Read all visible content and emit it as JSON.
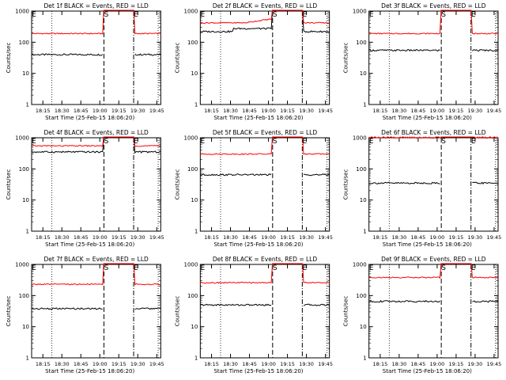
{
  "figure": {
    "ylabel": "Counts/sec",
    "xlabel": "Start Time (25-Feb-15 18:06:20)",
    "legend_colors": {
      "events": "#000000",
      "lld": "#ff0000"
    }
  },
  "chart_data": [
    {
      "type": "line",
      "title": "Det 1f BLACK = Events, RED = LLD",
      "xlabel": "Start Time (25-Feb-15 18:06:20)",
      "ylabel": "Counts/sec",
      "yscale": "log",
      "ylim": [
        1,
        1000
      ],
      "xtick_labels": [
        "18:15",
        "18:30",
        "18:45",
        "19:00",
        "19:15",
        "19:30",
        "19:45"
      ],
      "yticks": [
        "1",
        "10",
        "100",
        "1000"
      ],
      "markers": [
        "E",
        "S",
        "E"
      ],
      "series": [
        {
          "color": "#000000",
          "baseline": 40
        },
        {
          "color": "#ff0000",
          "baseline": 190
        }
      ]
    },
    {
      "type": "line",
      "title": "Det 2f BLACK = Events, RED = LLD",
      "xlabel": "Start Time (25-Feb-15 18:06:20)",
      "ylabel": "Counts/sec",
      "yscale": "log",
      "ylim": [
        1,
        1000
      ],
      "xtick_labels": [
        "18:15",
        "18:30",
        "18:45",
        "19:00",
        "19:15",
        "19:30",
        "19:45"
      ],
      "yticks": [
        "1",
        "10",
        "100",
        "1000"
      ],
      "markers": [
        "E",
        "S",
        "E"
      ],
      "series": [
        {
          "color": "#000000",
          "baseline": 220
        },
        {
          "color": "#ff0000",
          "baseline": 420
        }
      ]
    },
    {
      "type": "line",
      "title": "Det 3f BLACK = Events, RED = LLD",
      "xlabel": "Start Time (25-Feb-15 18:06:20)",
      "ylabel": "Counts/sec",
      "yscale": "log",
      "ylim": [
        1,
        1000
      ],
      "xtick_labels": [
        "18:15",
        "18:30",
        "18:45",
        "19:00",
        "19:15",
        "19:30",
        "19:45"
      ],
      "yticks": [
        "1",
        "10",
        "100",
        "1000"
      ],
      "markers": [
        "E",
        "S",
        "E"
      ],
      "series": [
        {
          "color": "#000000",
          "baseline": 55
        },
        {
          "color": "#ff0000",
          "baseline": 190
        }
      ]
    },
    {
      "type": "line",
      "title": "Det 4f BLACK = Events, RED = LLD",
      "xlabel": "Start Time (25-Feb-15 18:06:20)",
      "ylabel": "Counts/sec",
      "yscale": "log",
      "ylim": [
        1,
        1000
      ],
      "xtick_labels": [
        "18:15",
        "18:30",
        "18:45",
        "19:00",
        "19:15",
        "19:30",
        "19:45"
      ],
      "yticks": [
        "1",
        "10",
        "100",
        "1000"
      ],
      "markers": [
        "E",
        "S",
        "E"
      ],
      "series": [
        {
          "color": "#000000",
          "baseline": 350
        },
        {
          "color": "#ff0000",
          "baseline": 550
        }
      ]
    },
    {
      "type": "line",
      "title": "Det 5f BLACK = Events, RED = LLD",
      "xlabel": "Start Time (25-Feb-15 18:06:20)",
      "ylabel": "Counts/sec",
      "yscale": "log",
      "ylim": [
        1,
        1000
      ],
      "xtick_labels": [
        "18:15",
        "18:30",
        "18:45",
        "19:00",
        "19:15",
        "19:30",
        "19:45"
      ],
      "yticks": [
        "1",
        "10",
        "100",
        "1000"
      ],
      "markers": [
        "E",
        "S",
        "E"
      ],
      "series": [
        {
          "color": "#000000",
          "baseline": 65
        },
        {
          "color": "#ff0000",
          "baseline": 300
        }
      ]
    },
    {
      "type": "line",
      "title": "Det 6f BLACK = Events, RED = LLD",
      "xlabel": "Start Time (25-Feb-15 18:06:20)",
      "ylabel": "Counts/sec",
      "yscale": "log",
      "ylim": [
        1,
        1000
      ],
      "xtick_labels": [
        "18:15",
        "18:30",
        "18:45",
        "19:00",
        "19:15",
        "19:30",
        "19:45"
      ],
      "yticks": [
        "1",
        "10",
        "100",
        "1000"
      ],
      "markers": [
        "E",
        "S",
        "E"
      ],
      "series": [
        {
          "color": "#000000",
          "baseline": 35
        },
        {
          "color": "#ff0000",
          "baseline": 1000
        }
      ]
    },
    {
      "type": "line",
      "title": "Det 7f BLACK = Events, RED = LLD",
      "xlabel": "Start Time (25-Feb-15 18:06:20)",
      "ylabel": "Counts/sec",
      "yscale": "log",
      "ylim": [
        1,
        1000
      ],
      "xtick_labels": [
        "18:15",
        "18:30",
        "18:45",
        "19:00",
        "19:15",
        "19:30",
        "19:45"
      ],
      "yticks": [
        "1",
        "10",
        "100",
        "1000"
      ],
      "markers": [
        "E",
        "S",
        "E"
      ],
      "series": [
        {
          "color": "#000000",
          "baseline": 38
        },
        {
          "color": "#ff0000",
          "baseline": 230
        }
      ]
    },
    {
      "type": "line",
      "title": "Det 8f BLACK = Events, RED = LLD",
      "xlabel": "Start Time (25-Feb-15 18:06:20)",
      "ylabel": "Counts/sec",
      "yscale": "log",
      "ylim": [
        1,
        1000
      ],
      "xtick_labels": [
        "18:15",
        "18:30",
        "18:45",
        "19:00",
        "19:15",
        "19:30",
        "19:45"
      ],
      "yticks": [
        "1",
        "10",
        "100",
        "1000"
      ],
      "markers": [
        "E",
        "S",
        "E"
      ],
      "series": [
        {
          "color": "#000000",
          "baseline": 50
        },
        {
          "color": "#ff0000",
          "baseline": 260
        }
      ]
    },
    {
      "type": "line",
      "title": "Det 9f BLACK = Events, RED = LLD",
      "xlabel": "Start Time (25-Feb-15 18:06:20)",
      "ylabel": "Counts/sec",
      "yscale": "log",
      "ylim": [
        1,
        1000
      ],
      "xtick_labels": [
        "18:15",
        "18:30",
        "18:45",
        "19:00",
        "19:15",
        "19:30",
        "19:45"
      ],
      "yticks": [
        "1",
        "10",
        "100",
        "1000"
      ],
      "markers": [
        "E",
        "S",
        "E"
      ],
      "series": [
        {
          "color": "#000000",
          "baseline": 65
        },
        {
          "color": "#ff0000",
          "baseline": 380
        }
      ]
    }
  ]
}
